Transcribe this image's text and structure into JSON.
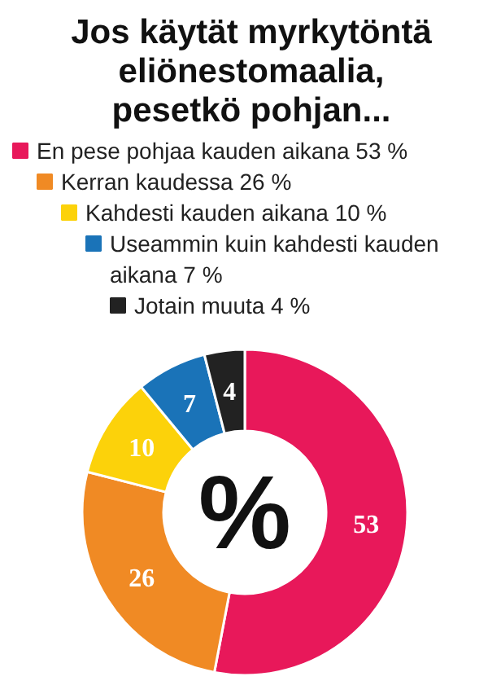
{
  "chart_data": {
    "type": "donut",
    "title": "Jos käytät myrkytöntä eliönestomaalia, pesetkö pohjan...",
    "categories": [
      "En pese pohjaa kauden aikana 53 %",
      "Kerran kaudessa 26 %",
      "Kahdesti kauden aikana 10 %",
      "Useammin kuin kahdesti kauden aikana 7 %",
      "Jotain muuta 4 %"
    ],
    "values": [
      53,
      26,
      10,
      7,
      4
    ],
    "colors": [
      "#e8185a",
      "#f08a24",
      "#fcd20a",
      "#1a73b8",
      "#222222"
    ],
    "data_labels": true,
    "legend": "top",
    "annotations": [
      "%"
    ]
  }
}
